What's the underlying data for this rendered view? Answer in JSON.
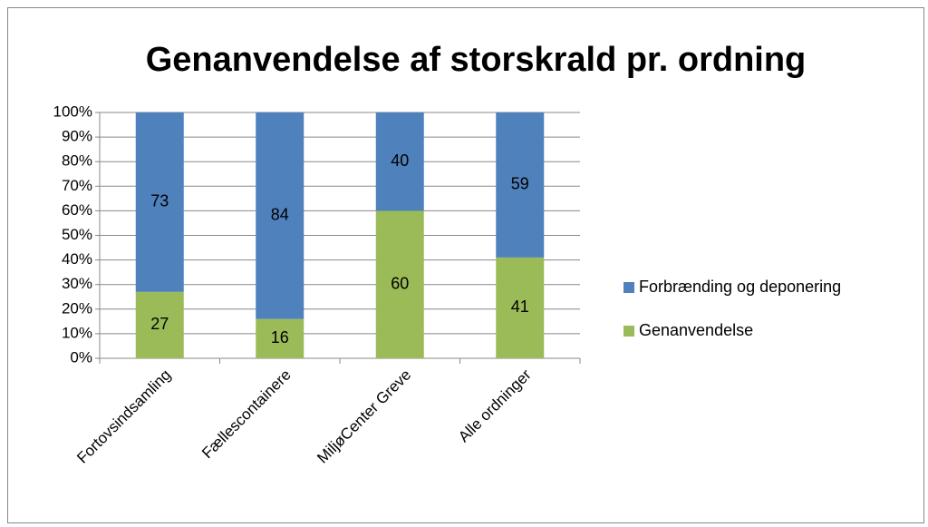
{
  "chart_data": {
    "type": "bar",
    "stacked": true,
    "title": "Genanvendelse  af storskrald pr. ordning",
    "categories": [
      "Fortovsindsamling",
      "Fællescontainere",
      "MiljøCenter Greve",
      "Alle ordninger"
    ],
    "series": [
      {
        "name": "Genanvendelse",
        "color": "#9bbb59",
        "values": [
          27,
          16,
          60,
          41
        ]
      },
      {
        "name": "Forbrænding  og deponering",
        "color": "#4f81bd",
        "values": [
          73,
          84,
          40,
          59
        ]
      }
    ],
    "ylim": [
      0,
      100
    ],
    "yticks": [
      {
        "value": 0,
        "label": "0%"
      },
      {
        "value": 10,
        "label": "10%"
      },
      {
        "value": 20,
        "label": "20%"
      },
      {
        "value": 30,
        "label": "30%"
      },
      {
        "value": 40,
        "label": "40%"
      },
      {
        "value": 50,
        "label": "50%"
      },
      {
        "value": 60,
        "label": "60%"
      },
      {
        "value": 70,
        "label": "70%"
      },
      {
        "value": 80,
        "label": "80%"
      },
      {
        "value": 90,
        "label": "90%"
      },
      {
        "value": 100,
        "label": "100%"
      }
    ],
    "grid": true,
    "legend": "right"
  }
}
